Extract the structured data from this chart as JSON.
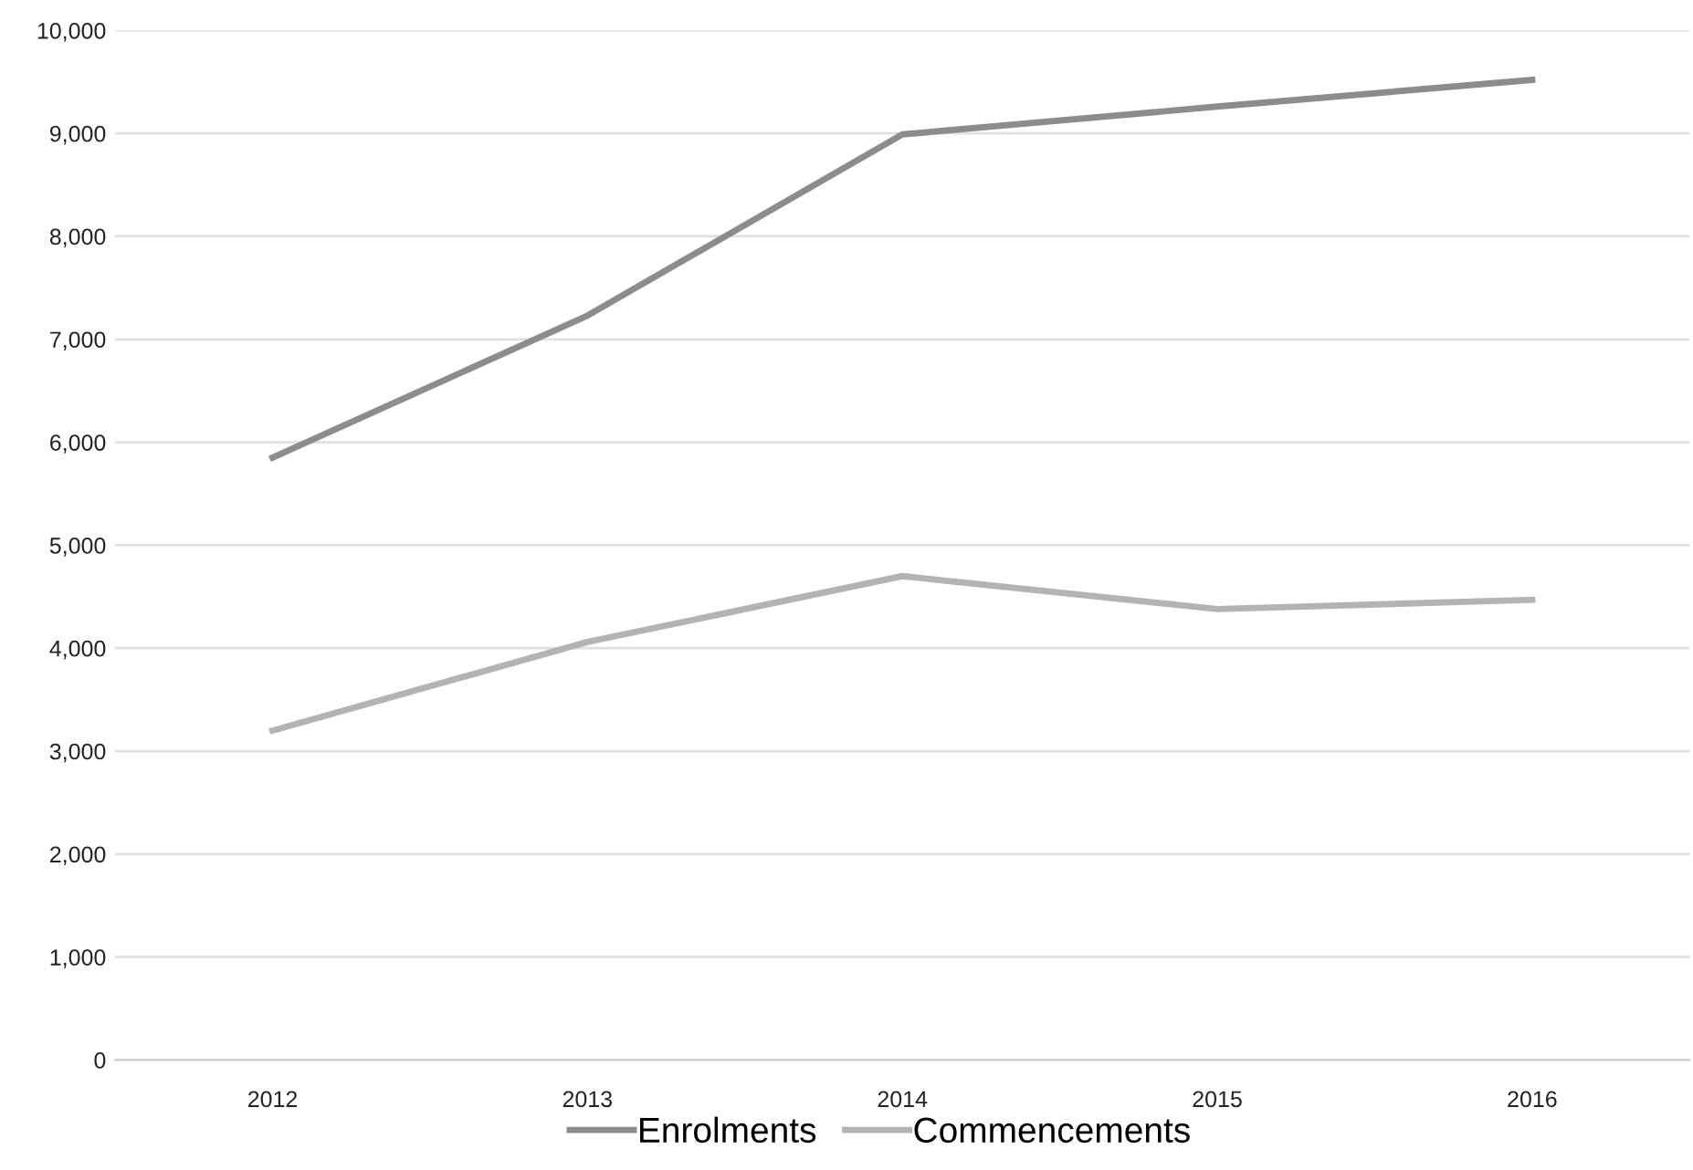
{
  "chart_data": {
    "type": "line",
    "categories": [
      "2012",
      "2013",
      "2014",
      "2015",
      "2016"
    ],
    "series": [
      {
        "name": "Enrolments",
        "color": "#8c8c8c",
        "values": [
          5850,
          7230,
          8990,
          9260,
          9520
        ]
      },
      {
        "name": "Commencements",
        "color": "#b3b3b3",
        "values": [
          3200,
          4060,
          4700,
          4380,
          4470
        ]
      }
    ],
    "ylim": [
      0,
      10000
    ],
    "yticks": [
      0,
      {
        "value": 1000,
        "label": "1,000"
      },
      {
        "value": 2000,
        "label": "2,000"
      },
      {
        "value": 3000,
        "label": "3,000"
      },
      {
        "value": 4000,
        "label": "4,000"
      },
      {
        "value": 5000,
        "label": "5,000"
      },
      {
        "value": 6000,
        "label": "6,000"
      },
      {
        "value": 7000,
        "label": "7,000"
      },
      {
        "value": 8000,
        "label": "8,000"
      },
      {
        "value": 9000,
        "label": "9,000"
      },
      {
        "value": 10000,
        "label": "10,000"
      }
    ],
    "grid": "y",
    "legend": "bottom",
    "marker": "none",
    "line_style": "solid"
  }
}
